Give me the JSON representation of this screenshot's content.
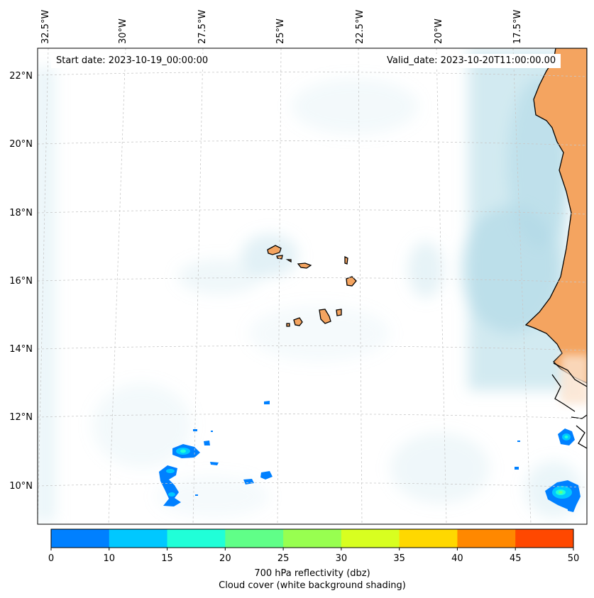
{
  "header": {
    "start_date": "Start date: 2023-10-19_00:00:00",
    "valid_date": "Valid_date: 2023-10-20T11:00:00.00"
  },
  "map": {
    "lon_labels": [
      "32.5°W",
      "30°W",
      "27.5°W",
      "25°W",
      "22.5°W",
      "20°W",
      "17.5°W"
    ],
    "lat_labels": [
      "22°N",
      "20°N",
      "18°N",
      "16°N",
      "14°N",
      "12°N",
      "10°N"
    ],
    "colors": {
      "land": "#f4a460",
      "cloud": "#add8e6",
      "coast": "#000000",
      "grid": "#c8c8c8"
    }
  },
  "colorbar": {
    "ticks": [
      "0",
      "10",
      "15",
      "20",
      "25",
      "30",
      "35",
      "40",
      "45",
      "50"
    ],
    "colors": [
      "#0080ff",
      "#00c8ff",
      "#20ffd8",
      "#60ff88",
      "#98ff50",
      "#d8ff20",
      "#ffd800",
      "#ff8800",
      "#ff4800"
    ],
    "label": "700 hPa reflectivity (dbz)",
    "sublabel": "Cloud cover (white background shading)"
  }
}
